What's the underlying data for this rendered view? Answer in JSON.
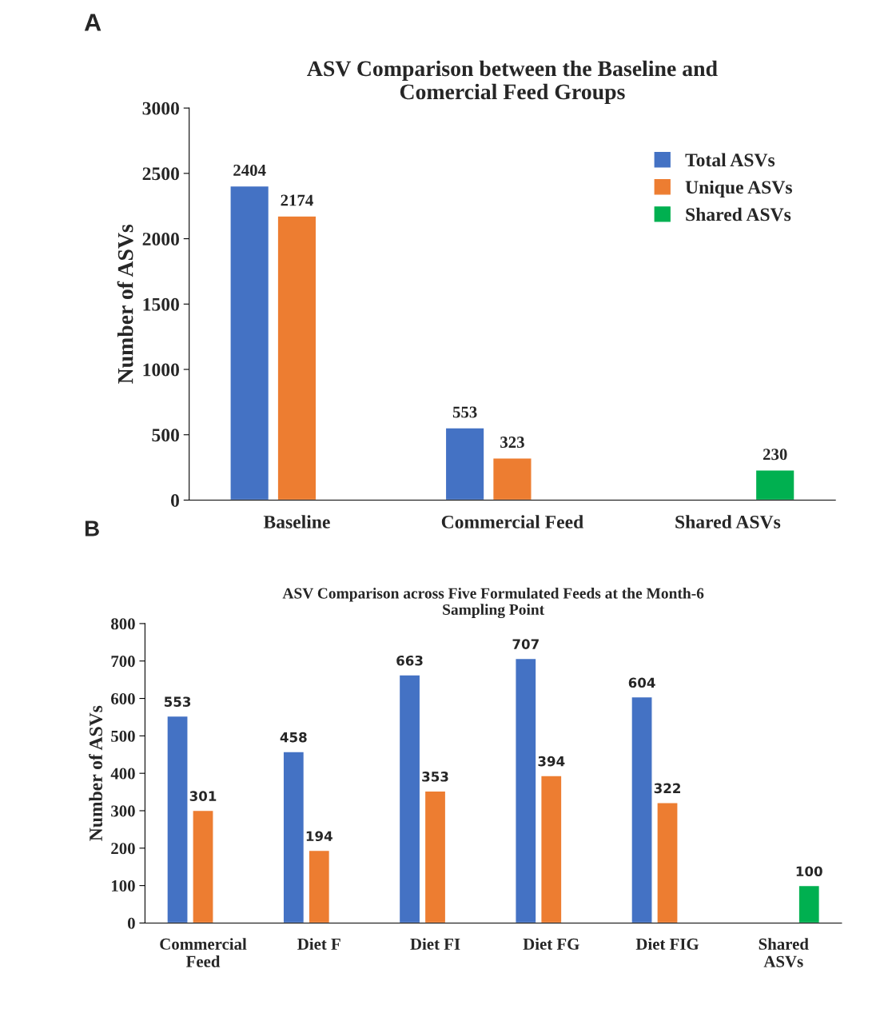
{
  "chart_data": [
    {
      "type": "bar",
      "title": "ASV Comparison between the Baseline and\nComercial Feed Groups",
      "ylabel": "Number of ASVs",
      "annotations": [
        "A"
      ],
      "categories": [
        "Baseline",
        "Commercial Feed",
        "Shared ASVs"
      ],
      "series": [
        {
          "name": "Total ASVs",
          "color": "#4472c4",
          "values": [
            2404,
            553,
            null
          ]
        },
        {
          "name": "Unique ASVs",
          "color": "#ed7d31",
          "values": [
            2174,
            323,
            null
          ]
        },
        {
          "name": "Shared ASVs",
          "color": "#00b050",
          "values": [
            null,
            null,
            230
          ]
        }
      ],
      "ylim": [
        0,
        3000
      ],
      "yticks": [
        0,
        500,
        1000,
        1500,
        2000,
        2500,
        3000
      ],
      "data_labels": true,
      "legend": "top right",
      "grid": false
    },
    {
      "type": "bar",
      "title": "ASV Comparison across Five Formulated Feeds at the Month-6\nSampling Point",
      "ylabel": "Number of ASVs",
      "annotations": [
        "B"
      ],
      "categories": [
        "Commercial\nFeed",
        "Diet F",
        "Diet FI",
        "Diet FG",
        "Diet FIG",
        "Shared\nASVs"
      ],
      "series": [
        {
          "color": "#4472c4",
          "values": [
            553,
            458,
            663,
            707,
            604,
            null
          ]
        },
        {
          "color": "#ed7d31",
          "values": [
            301,
            194,
            353,
            394,
            322,
            null
          ]
        },
        {
          "color": "#00b050",
          "values": [
            null,
            null,
            null,
            null,
            null,
            100
          ]
        }
      ],
      "ylim": [
        0,
        800
      ],
      "yticks": [
        0,
        100,
        200,
        300,
        400,
        500,
        600,
        700,
        800
      ],
      "data_labels": true,
      "grid": false
    }
  ]
}
